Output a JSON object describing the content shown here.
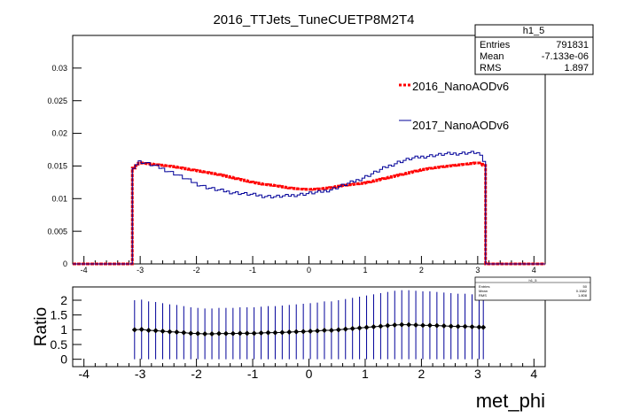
{
  "title": "2016_TTJets_TuneCUETP8M2T4",
  "stats_box": {
    "name": "h1_5",
    "rows": [
      {
        "label": "Entries",
        "value": "791831"
      },
      {
        "label": "Mean",
        "value": "-7.133e-06"
      },
      {
        "label": "RMS",
        "value": "1.897"
      }
    ]
  },
  "ratio_stats_box": {
    "name": "h1_5",
    "rows": [
      {
        "label": "Entries",
        "value": "50"
      },
      {
        "label": "Mean",
        "value": "0.1582"
      },
      {
        "label": "RMS",
        "value": "1.808"
      }
    ]
  },
  "legend": [
    {
      "name": "2016_NanoAODv6",
      "color": "#ff0000"
    },
    {
      "name": "2017_NanoAODv6",
      "color": "#000099"
    }
  ],
  "chart_data": [
    {
      "type": "line",
      "xlim": [
        -4.2,
        4.2
      ],
      "ylim": [
        0,
        0.035
      ],
      "x_ticks": [
        "-4",
        "-3",
        "-2",
        "-1",
        "0",
        "1",
        "2",
        "3",
        "4"
      ],
      "y_ticks": [
        "0",
        "0.005",
        "0.01",
        "0.015",
        "0.02",
        "0.025",
        "0.03"
      ],
      "xlabel": "",
      "ylabel": "",
      "series": [
        {
          "name": "2016_NanoAODv6",
          "color": "#ff0000",
          "x": [
            -3.14,
            -3.0,
            -2.8,
            -2.6,
            -2.4,
            -2.2,
            -2.0,
            -1.8,
            -1.6,
            -1.4,
            -1.2,
            -1.0,
            -0.8,
            -0.6,
            -0.4,
            -0.2,
            0.0,
            0.2,
            0.4,
            0.6,
            0.8,
            1.0,
            1.2,
            1.4,
            1.6,
            1.8,
            2.0,
            2.2,
            2.4,
            2.6,
            2.8,
            3.0,
            3.14
          ],
          "y": [
            0.0145,
            0.0155,
            0.0153,
            0.0151,
            0.0149,
            0.0146,
            0.0143,
            0.014,
            0.0137,
            0.0133,
            0.0129,
            0.0125,
            0.0122,
            0.012,
            0.0117,
            0.0115,
            0.0114,
            0.0115,
            0.0117,
            0.012,
            0.0122,
            0.0124,
            0.0128,
            0.0132,
            0.0136,
            0.014,
            0.0144,
            0.0147,
            0.0149,
            0.0151,
            0.0153,
            0.0155,
            0.015
          ]
        },
        {
          "name": "2017_NanoAODv6",
          "color": "#000099",
          "x": [
            -3.14,
            -3.0,
            -2.8,
            -2.6,
            -2.4,
            -2.2,
            -2.0,
            -1.8,
            -1.6,
            -1.4,
            -1.2,
            -1.0,
            -0.8,
            -0.6,
            -0.4,
            -0.2,
            0.0,
            0.2,
            0.4,
            0.6,
            0.8,
            1.0,
            1.2,
            1.4,
            1.6,
            1.8,
            2.0,
            2.2,
            2.4,
            2.6,
            2.8,
            3.0,
            3.14
          ],
          "y": [
            0.0147,
            0.0157,
            0.0152,
            0.0146,
            0.0139,
            0.0131,
            0.0123,
            0.0117,
            0.0113,
            0.011,
            0.0108,
            0.0106,
            0.0104,
            0.0103,
            0.0104,
            0.0106,
            0.0108,
            0.011,
            0.0114,
            0.012,
            0.0126,
            0.0133,
            0.0141,
            0.0149,
            0.0156,
            0.0161,
            0.0164,
            0.0166,
            0.0168,
            0.0169,
            0.017,
            0.0171,
            0.0155
          ]
        }
      ]
    },
    {
      "type": "scatter",
      "xlim": [
        -4.2,
        4.2
      ],
      "ylim": [
        -0.25,
        2.45
      ],
      "x_ticks": [
        "-4",
        "-3",
        "-2",
        "-1",
        "0",
        "1",
        "2",
        "3",
        "4"
      ],
      "y_ticks": [
        "0",
        "0.5",
        "1",
        "1.5",
        "2"
      ],
      "xlabel": "met_phi",
      "ylabel": "Ratio",
      "series": [
        {
          "name": "",
          "color": "#000000",
          "x": [
            -3.1,
            -2.975,
            -2.85,
            -2.725,
            -2.6,
            -2.475,
            -2.35,
            -2.225,
            -2.1,
            -1.975,
            -1.85,
            -1.725,
            -1.6,
            -1.475,
            -1.35,
            -1.225,
            -1.1,
            -0.975,
            -0.85,
            -0.725,
            -0.6,
            -0.475,
            -0.35,
            -0.225,
            -0.1,
            0.025,
            0.15,
            0.275,
            0.4,
            0.525,
            0.65,
            0.775,
            0.9,
            1.025,
            1.15,
            1.275,
            1.4,
            1.525,
            1.65,
            1.775,
            1.9,
            2.025,
            2.15,
            2.275,
            2.4,
            2.525,
            2.65,
            2.775,
            2.9,
            3.025,
            3.1
          ],
          "y": [
            1.0,
            1.01,
            0.98,
            0.97,
            0.95,
            0.93,
            0.92,
            0.9,
            0.88,
            0.87,
            0.86,
            0.86,
            0.87,
            0.87,
            0.87,
            0.88,
            0.88,
            0.88,
            0.89,
            0.9,
            0.9,
            0.91,
            0.92,
            0.93,
            0.94,
            0.95,
            0.96,
            0.98,
            0.98,
            1.0,
            1.02,
            1.04,
            1.06,
            1.08,
            1.1,
            1.12,
            1.14,
            1.16,
            1.17,
            1.17,
            1.16,
            1.15,
            1.15,
            1.14,
            1.13,
            1.12,
            1.11,
            1.11,
            1.1,
            1.09,
            1.08
          ],
          "err": [
            1.0,
            1.01,
            0.98,
            0.97,
            0.95,
            0.93,
            0.92,
            0.9,
            0.88,
            0.87,
            0.86,
            0.86,
            0.87,
            0.87,
            0.87,
            0.88,
            0.88,
            0.88,
            0.89,
            0.9,
            0.9,
            0.91,
            0.92,
            0.93,
            0.94,
            0.95,
            0.96,
            0.98,
            0.98,
            1.0,
            1.02,
            1.04,
            1.06,
            1.08,
            1.1,
            1.12,
            1.14,
            1.16,
            1.17,
            1.17,
            1.16,
            1.15,
            1.15,
            1.14,
            1.13,
            1.12,
            1.11,
            1.11,
            1.1,
            1.09,
            1.08
          ]
        }
      ]
    }
  ]
}
